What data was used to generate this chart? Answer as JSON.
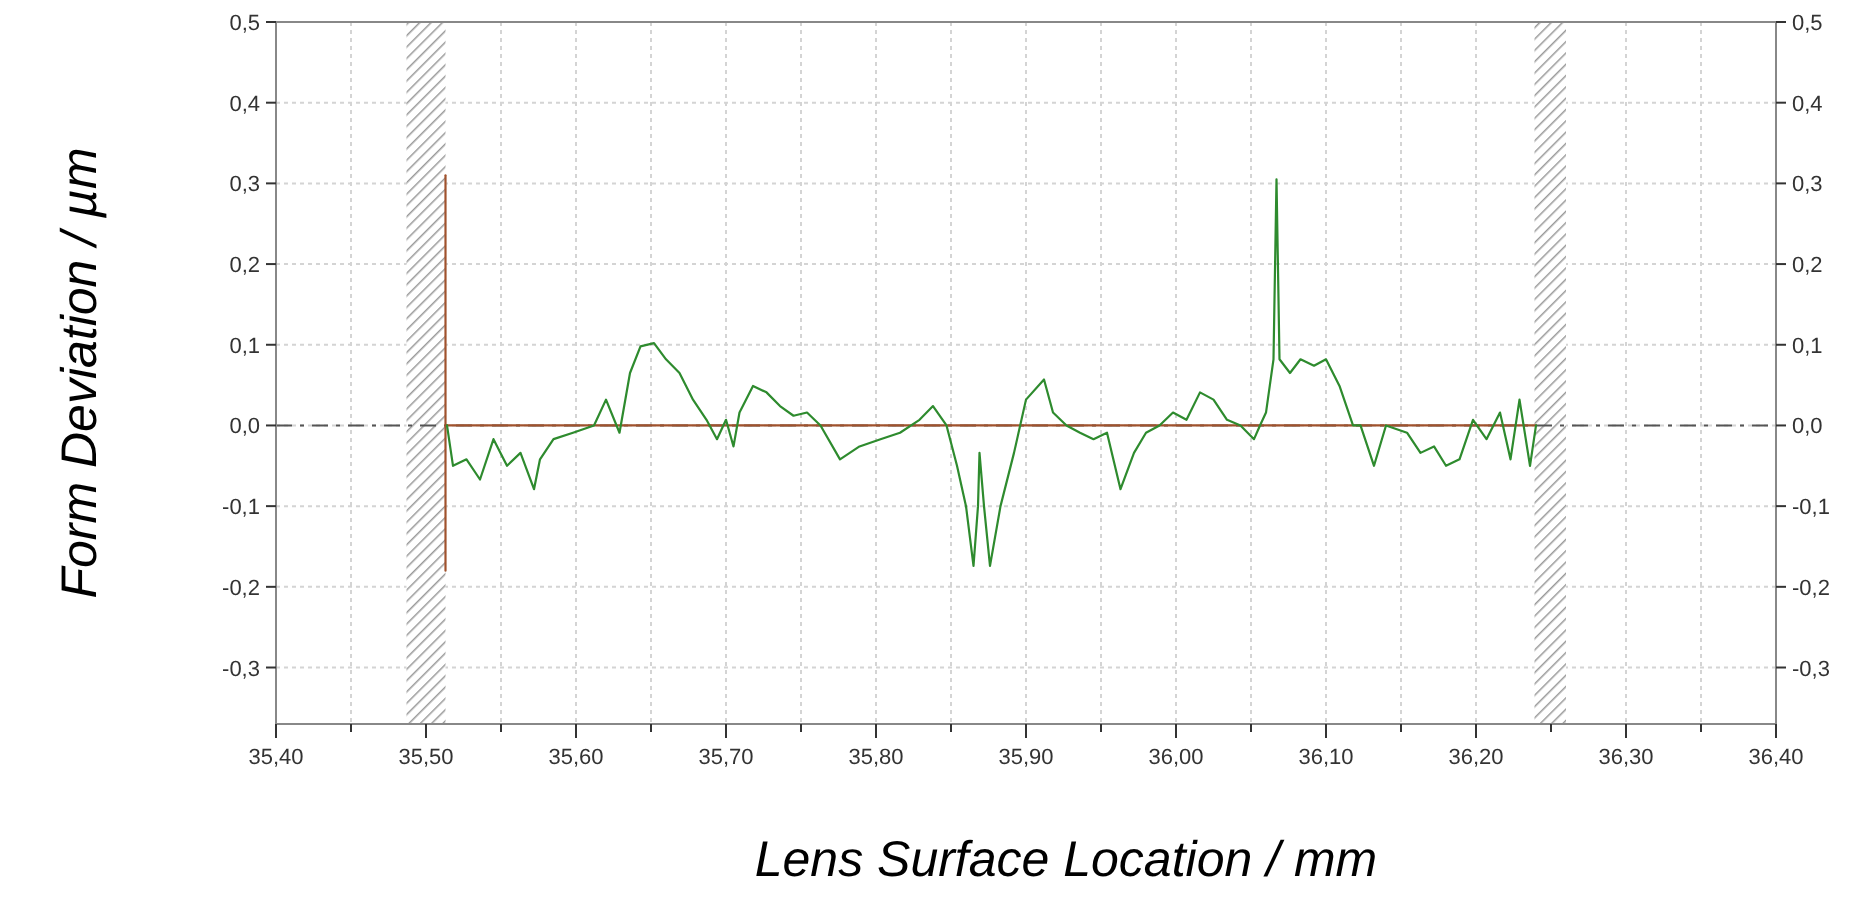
{
  "chart_data": {
    "type": "line",
    "xlabel": "Lens Surface Location / mm",
    "ylabel": "Form Deviation / µm",
    "xlim": [
      35.4,
      36.4
    ],
    "xticks": [
      {
        "value": 35.4,
        "label": "35,40"
      },
      {
        "value": 35.45,
        "label": null
      },
      {
        "value": 35.5,
        "label": "35,50"
      },
      {
        "value": 35.55,
        "label": null
      },
      {
        "value": 35.6,
        "label": "35,60"
      },
      {
        "value": 35.65,
        "label": null
      },
      {
        "value": 35.7,
        "label": "35,70"
      },
      {
        "value": 35.75,
        "label": null
      },
      {
        "value": 35.8,
        "label": "35,80"
      },
      {
        "value": 35.85,
        "label": null
      },
      {
        "value": 35.9,
        "label": "35,90"
      },
      {
        "value": 35.95,
        "label": null
      },
      {
        "value": 36.0,
        "label": "36,00"
      },
      {
        "value": 36.05,
        "label": null
      },
      {
        "value": 36.1,
        "label": "36,10"
      },
      {
        "value": 36.15,
        "label": null
      },
      {
        "value": 36.2,
        "label": "36,20"
      },
      {
        "value": 36.25,
        "label": null
      },
      {
        "value": 36.3,
        "label": "36,30"
      },
      {
        "value": 36.35,
        "label": null
      },
      {
        "value": 36.4,
        "label": "36,40"
      }
    ],
    "ylim": [
      -0.37,
      0.5
    ],
    "yticks": [
      {
        "value": -0.3,
        "label": "-0,3"
      },
      {
        "value": -0.2,
        "label": "-0,2"
      },
      {
        "value": -0.1,
        "label": "-0,1"
      },
      {
        "value": 0,
        "label": "0,0"
      },
      {
        "value": 0.1,
        "label": "0,1"
      },
      {
        "value": 0.2,
        "label": "0,2"
      },
      {
        "value": 0.3,
        "label": "0,3"
      },
      {
        "value": 0.4,
        "label": "0,4"
      },
      {
        "value": 0.5,
        "label": "0,5"
      }
    ],
    "y2lim": [
      -0.37,
      0.5
    ],
    "y2ticks": [
      {
        "value": -0.3,
        "label": "-0,3"
      },
      {
        "value": -0.2,
        "label": "-0,2"
      },
      {
        "value": -0.1,
        "label": "-0,1"
      },
      {
        "value": 0,
        "label": "0,0"
      },
      {
        "value": 0.1,
        "label": "0,1"
      },
      {
        "value": 0.2,
        "label": "0,2"
      },
      {
        "value": 0.3,
        "label": "0,3"
      },
      {
        "value": 0.4,
        "label": "0,4"
      },
      {
        "value": 0.5,
        "label": "0,5"
      }
    ],
    "grid": true,
    "bands": [
      {
        "axis": "x",
        "from": 35.487,
        "to": 35.513,
        "color": "#9a9a9a"
      },
      {
        "axis": "x",
        "from": 36.239,
        "to": 36.26,
        "color": "#9a9a9a"
      }
    ],
    "ref_lines": [
      {
        "axis": "y",
        "value": 0,
        "color": "#555555",
        "line_style": "dashdot"
      }
    ],
    "series": [
      {
        "color": "#a0522d",
        "x": [
          35.513,
          36.24
        ],
        "values": [
          0,
          0
        ]
      },
      {
        "color": "#a0522d",
        "x": [
          35.513,
          35.513
        ],
        "values": [
          0.31,
          -0.18
        ]
      },
      {
        "color": "#2e8b2e",
        "x": [
          35.514,
          35.518,
          35.527,
          35.536,
          35.545,
          35.554,
          35.563,
          35.572,
          35.576,
          35.585,
          35.598,
          35.612,
          35.62,
          35.629,
          35.636,
          35.643,
          35.652,
          35.66,
          35.669,
          35.678,
          35.687,
          35.694,
          35.7,
          35.705,
          35.709,
          35.718,
          35.727,
          35.736,
          35.745,
          35.754,
          35.763,
          35.776,
          35.789,
          35.803,
          35.816,
          35.829,
          35.838,
          35.847,
          35.854,
          35.86,
          35.865,
          35.868,
          35.869,
          35.872,
          35.876,
          35.883,
          35.892,
          35.9,
          35.912,
          35.918,
          35.927,
          35.936,
          35.945,
          35.954,
          35.963,
          35.972,
          35.98,
          35.989,
          35.998,
          36.007,
          36.016,
          36.025,
          36.034,
          36.043,
          36.052,
          36.056,
          36.06,
          36.065,
          36.067,
          36.069,
          36.076,
          36.083,
          36.092,
          36.1,
          36.109,
          36.118,
          36.123,
          36.132,
          36.14,
          36.154,
          36.163,
          36.172,
          36.18,
          36.189,
          36.198,
          36.207,
          36.216,
          36.223,
          36.229,
          36.236,
          36.24
        ],
        "values": [
          0,
          -0.05,
          -0.042,
          -0.067,
          -0.017,
          -0.05,
          -0.034,
          -0.079,
          -0.042,
          -0.017,
          -0.009,
          0,
          0.032,
          -0.009,
          0.065,
          0.098,
          0.102,
          0.082,
          0.065,
          0.032,
          0.007,
          -0.017,
          0.007,
          -0.026,
          0.016,
          0.049,
          0.041,
          0.024,
          0.012,
          0.016,
          0,
          -0.042,
          -0.026,
          -0.017,
          -0.009,
          0.007,
          0.024,
          0,
          -0.05,
          -0.1,
          -0.174,
          -0.1,
          -0.034,
          -0.1,
          -0.174,
          -0.1,
          -0.034,
          0.032,
          0.057,
          0.016,
          0,
          -0.009,
          -0.017,
          -0.009,
          -0.079,
          -0.034,
          -0.009,
          0,
          0.016,
          0.007,
          0.041,
          0.032,
          0.007,
          0,
          -0.017,
          0,
          0.016,
          0.082,
          0.305,
          0.082,
          0.065,
          0.082,
          0.074,
          0.082,
          0.049,
          0,
          0,
          -0.05,
          0,
          -0.009,
          -0.034,
          -0.026,
          -0.05,
          -0.042,
          0.007,
          -0.017,
          0.016,
          -0.042,
          0.032,
          -0.05,
          0
        ]
      }
    ]
  }
}
